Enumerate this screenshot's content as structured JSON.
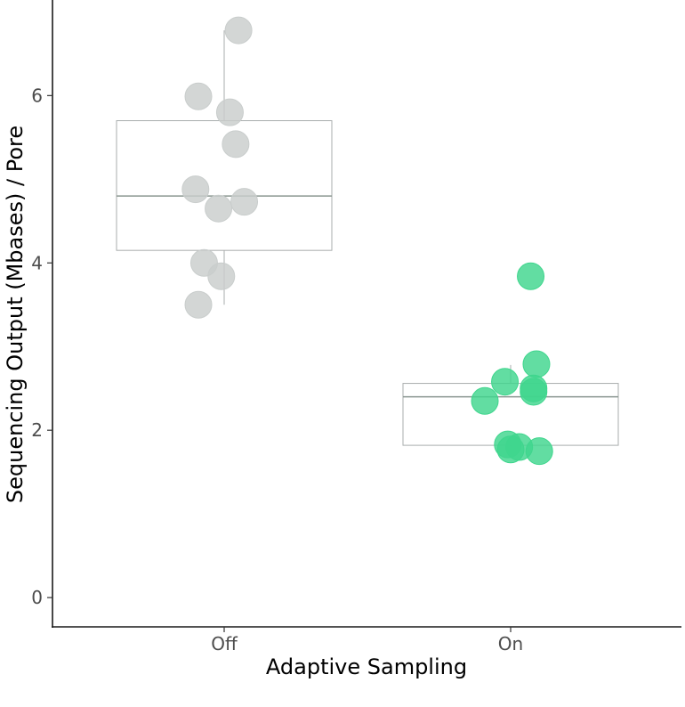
{
  "chart_data": {
    "type": "scatter",
    "subtype": "box-with-jitter",
    "title": "",
    "xlabel": "Adaptive Sampling",
    "ylabel": "Sequencing Output (Mbases) / Pore",
    "ylim": [
      -0.35,
      7.1
    ],
    "yticks": [
      0,
      2,
      4,
      6
    ],
    "categories": [
      "Off",
      "On"
    ],
    "grid": false,
    "colors": {
      "Off": "#c9cdcc",
      "On": "#3fd68d",
      "box_stroke": "#a9adad",
      "median_stroke": "#8a9691",
      "axis": "#1a1a1a"
    },
    "series": [
      {
        "name": "Off",
        "box": {
          "whisker_low": 3.5,
          "q1": 4.15,
          "median": 4.8,
          "q3": 5.7,
          "whisker_high": 6.78
        },
        "points": [
          {
            "jitter": 0.05,
            "y": 6.78
          },
          {
            "jitter": -0.09,
            "y": 5.99
          },
          {
            "jitter": 0.02,
            "y": 5.8
          },
          {
            "jitter": 0.04,
            "y": 5.42
          },
          {
            "jitter": -0.1,
            "y": 4.88
          },
          {
            "jitter": 0.07,
            "y": 4.73
          },
          {
            "jitter": -0.02,
            "y": 4.65
          },
          {
            "jitter": -0.07,
            "y": 4.0
          },
          {
            "jitter": -0.01,
            "y": 3.84
          },
          {
            "jitter": -0.09,
            "y": 3.5
          }
        ]
      },
      {
        "name": "On",
        "box": {
          "whisker_low": 1.75,
          "q1": 1.82,
          "median": 2.4,
          "q3": 2.56,
          "whisker_high": 2.78
        },
        "points": [
          {
            "jitter": 0.07,
            "y": 3.84
          },
          {
            "jitter": 0.09,
            "y": 2.79
          },
          {
            "jitter": -0.02,
            "y": 2.58
          },
          {
            "jitter": 0.08,
            "y": 2.5
          },
          {
            "jitter": 0.08,
            "y": 2.46
          },
          {
            "jitter": -0.09,
            "y": 2.35
          },
          {
            "jitter": -0.01,
            "y": 1.83
          },
          {
            "jitter": 0.03,
            "y": 1.8
          },
          {
            "jitter": 0.0,
            "y": 1.77
          },
          {
            "jitter": 0.1,
            "y": 1.75
          }
        ]
      }
    ]
  }
}
